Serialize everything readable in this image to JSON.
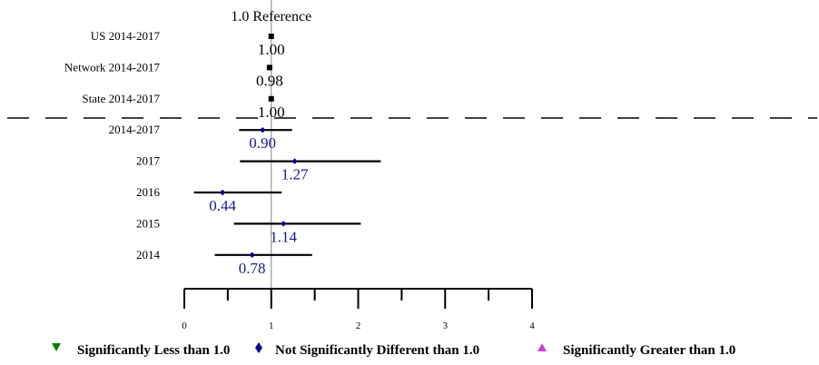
{
  "chart_data": {
    "type": "forest",
    "reference": {
      "value": 1.0,
      "label": "1.0 Reference"
    },
    "xlim": [
      0,
      4
    ],
    "xticks": [
      {
        "value": 0,
        "label": "0"
      },
      {
        "value": 1,
        "label": "1"
      },
      {
        "value": 2,
        "label": "2"
      },
      {
        "value": 3,
        "label": "3"
      },
      {
        "value": 4,
        "label": "4"
      }
    ],
    "comparison_rows": [
      {
        "label": "US 2014-2017",
        "estimate": 1.0,
        "value_label": "1.00"
      },
      {
        "label": "Network 2014-2017",
        "estimate": 0.98,
        "value_label": "0.98"
      },
      {
        "label": "State 2014-2017",
        "estimate": 1.0,
        "value_label": "1.00"
      }
    ],
    "rows": [
      {
        "label": "2014-2017",
        "estimate": 0.9,
        "ci_low": 0.63,
        "ci_high": 1.24,
        "value_label": "0.90",
        "significance": "not-significant"
      },
      {
        "label": "2017",
        "estimate": 1.27,
        "ci_low": 0.64,
        "ci_high": 2.26,
        "value_label": "1.27",
        "significance": "not-significant"
      },
      {
        "label": "2016",
        "estimate": 0.44,
        "ci_low": 0.11,
        "ci_high": 1.12,
        "value_label": "0.44",
        "significance": "not-significant"
      },
      {
        "label": "2015",
        "estimate": 1.14,
        "ci_low": 0.57,
        "ci_high": 2.03,
        "value_label": "1.14",
        "significance": "not-significant"
      },
      {
        "label": "2014",
        "estimate": 0.78,
        "ci_low": 0.35,
        "ci_high": 1.47,
        "value_label": "0.78",
        "significance": "not-significant"
      }
    ],
    "legend": [
      {
        "key": "less",
        "label": "Significantly Less than 1.0",
        "marker": "triangle-down",
        "color": "#008000"
      },
      {
        "key": "not-significant",
        "label": "Not Significantly Different than 1.0",
        "marker": "diamond",
        "color": "#00008b"
      },
      {
        "key": "greater",
        "label": "Significantly Greater than 1.0",
        "marker": "triangle-up",
        "color": "#cc44cc"
      }
    ],
    "colors": {
      "comparison_value_text": "#000000",
      "value_text": "#1a1a8c",
      "reference_line": "#999999",
      "ci_line": "#000000",
      "separator": "#000000"
    }
  }
}
